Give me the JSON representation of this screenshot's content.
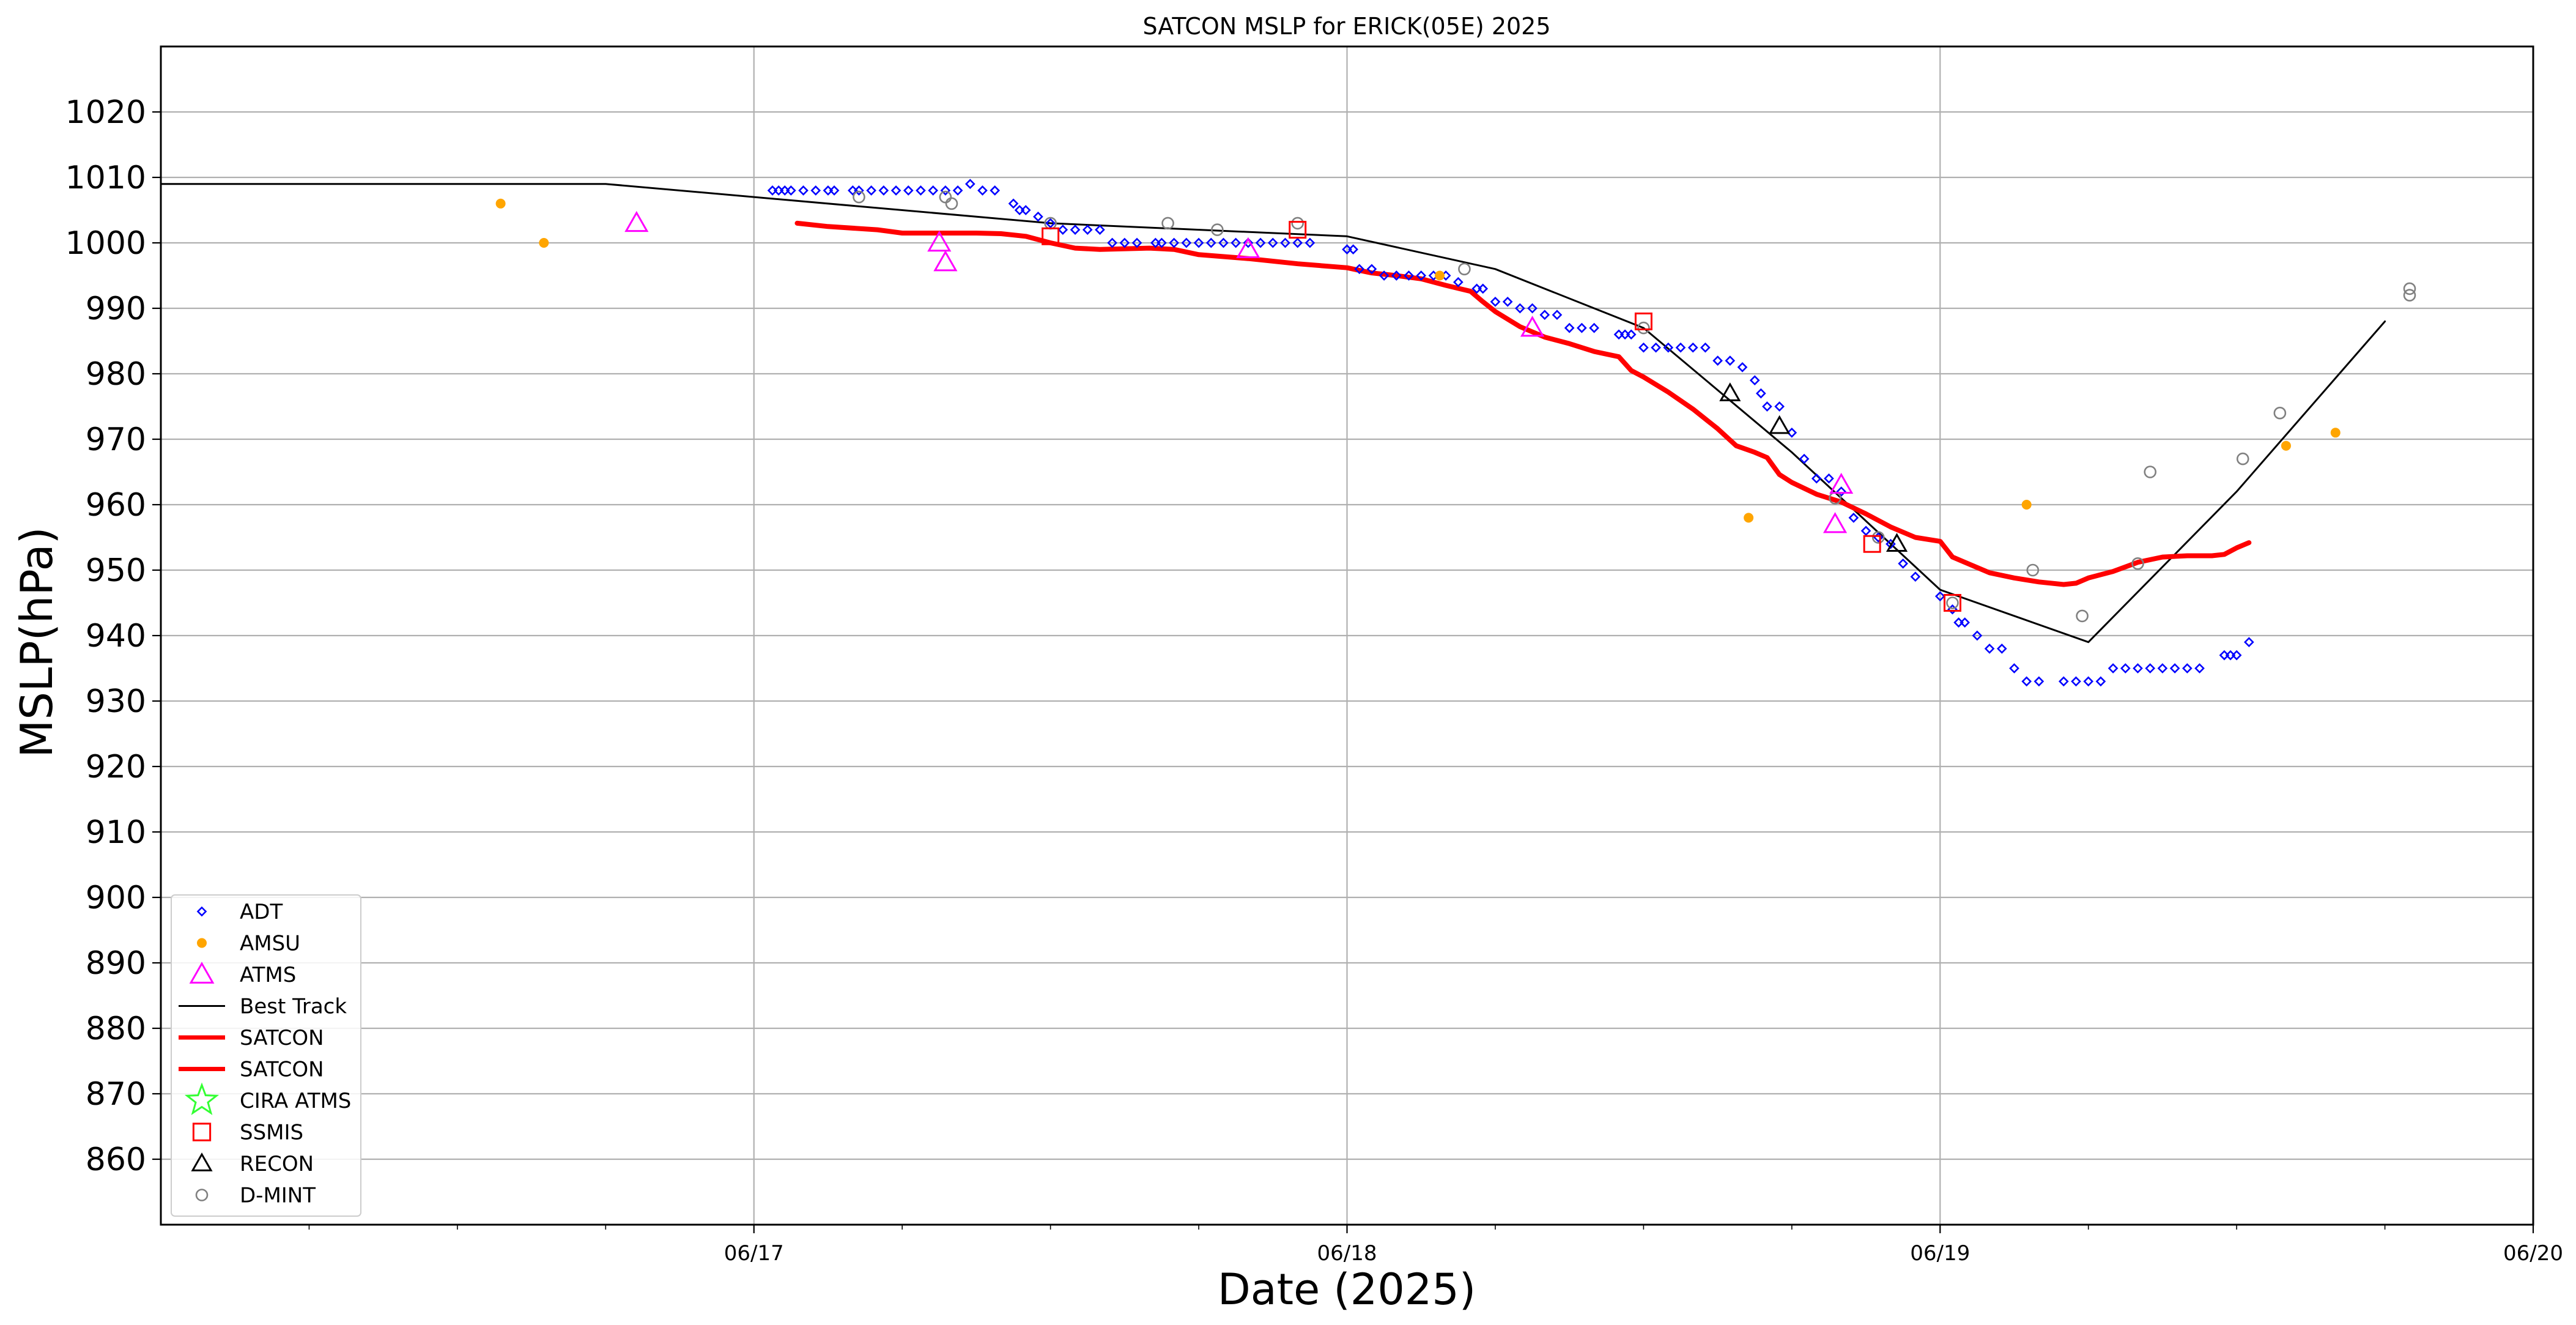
{
  "chart_data": {
    "type": "scatter",
    "title": "SATCON MSLP for ERICK(05E) 2025",
    "xlabel": "Date (2025)",
    "ylabel": "MSLP(hPa)",
    "xlim": [
      "06/16 00:00",
      "06/20 00:00"
    ],
    "ylim": [
      850,
      1030
    ],
    "yticks": [
      860,
      870,
      880,
      890,
      900,
      910,
      920,
      930,
      940,
      950,
      960,
      970,
      980,
      990,
      1000,
      1010,
      1020
    ],
    "xticks": [
      {
        "t": "06/17 00:00",
        "label": "06/17"
      },
      {
        "t": "06/18 00:00",
        "label": "06/18"
      },
      {
        "t": "06/19 00:00",
        "label": "06/19"
      },
      {
        "t": "06/20 00:00",
        "label": "06/20"
      }
    ],
    "xminor": [
      "06/16 06:00",
      "06/16 12:00",
      "06/16 18:00",
      "06/17 06:00",
      "06/17 12:00",
      "06/17 18:00",
      "06/18 06:00",
      "06/18 12:00",
      "06/18 18:00",
      "06/19 06:00",
      "06/19 12:00",
      "06/19 18:00"
    ],
    "grid": true,
    "legend_position": "lower-left",
    "series": [
      {
        "name": "ADT",
        "marker": "diamond",
        "color": "#0000ff",
        "points": [
          [
            "06/17 00:45",
            1008
          ],
          [
            "06/17 01:00",
            1008
          ],
          [
            "06/17 01:15",
            1008
          ],
          [
            "06/17 01:30",
            1008
          ],
          [
            "06/17 02:00",
            1008
          ],
          [
            "06/17 02:30",
            1008
          ],
          [
            "06/17 03:00",
            1008
          ],
          [
            "06/17 03:15",
            1008
          ],
          [
            "06/17 04:00",
            1008
          ],
          [
            "06/17 04:15",
            1008
          ],
          [
            "06/17 04:45",
            1008
          ],
          [
            "06/17 05:15",
            1008
          ],
          [
            "06/17 05:45",
            1008
          ],
          [
            "06/17 06:15",
            1008
          ],
          [
            "06/17 06:45",
            1008
          ],
          [
            "06/17 07:15",
            1008
          ],
          [
            "06/17 07:45",
            1008
          ],
          [
            "06/17 08:15",
            1008
          ],
          [
            "06/17 08:45",
            1009
          ],
          [
            "06/17 09:15",
            1008
          ],
          [
            "06/17 09:45",
            1008
          ],
          [
            "06/17 10:30",
            1006
          ],
          [
            "06/17 10:45",
            1005
          ],
          [
            "06/17 11:00",
            1005
          ],
          [
            "06/17 11:30",
            1004
          ],
          [
            "06/17 12:00",
            1003
          ],
          [
            "06/17 12:30",
            1002
          ],
          [
            "06/17 13:00",
            1002
          ],
          [
            "06/17 13:30",
            1002
          ],
          [
            "06/17 14:00",
            1002
          ],
          [
            "06/17 14:30",
            1000
          ],
          [
            "06/17 15:00",
            1000
          ],
          [
            "06/17 15:30",
            1000
          ],
          [
            "06/17 16:15",
            1000
          ],
          [
            "06/17 16:30",
            1000
          ],
          [
            "06/17 17:00",
            1000
          ],
          [
            "06/17 17:30",
            1000
          ],
          [
            "06/17 18:00",
            1000
          ],
          [
            "06/17 18:30",
            1000
          ],
          [
            "06/17 19:00",
            1000
          ],
          [
            "06/17 19:30",
            1000
          ],
          [
            "06/17 20:00",
            1000
          ],
          [
            "06/17 20:30",
            1000
          ],
          [
            "06/17 21:00",
            1000
          ],
          [
            "06/17 21:30",
            1000
          ],
          [
            "06/17 22:00",
            1000
          ],
          [
            "06/17 22:30",
            1000
          ],
          [
            "06/18 00:00",
            999
          ],
          [
            "06/18 00:15",
            999
          ],
          [
            "06/18 00:30",
            996
          ],
          [
            "06/18 01:00",
            996
          ],
          [
            "06/18 01:30",
            995
          ],
          [
            "06/18 02:00",
            995
          ],
          [
            "06/18 02:30",
            995
          ],
          [
            "06/18 03:00",
            995
          ],
          [
            "06/18 03:30",
            995
          ],
          [
            "06/18 04:00",
            995
          ],
          [
            "06/18 04:30",
            994
          ],
          [
            "06/18 05:15",
            993
          ],
          [
            "06/18 05:30",
            993
          ],
          [
            "06/18 06:00",
            991
          ],
          [
            "06/18 06:30",
            991
          ],
          [
            "06/18 07:00",
            990
          ],
          [
            "06/18 07:30",
            990
          ],
          [
            "06/18 08:00",
            989
          ],
          [
            "06/18 08:30",
            989
          ],
          [
            "06/18 09:00",
            987
          ],
          [
            "06/18 09:30",
            987
          ],
          [
            "06/18 10:00",
            987
          ],
          [
            "06/18 11:00",
            986
          ],
          [
            "06/18 11:15",
            986
          ],
          [
            "06/18 11:30",
            986
          ],
          [
            "06/18 12:00",
            984
          ],
          [
            "06/18 12:30",
            984
          ],
          [
            "06/18 13:00",
            984
          ],
          [
            "06/18 13:30",
            984
          ],
          [
            "06/18 14:00",
            984
          ],
          [
            "06/18 14:30",
            984
          ],
          [
            "06/18 15:00",
            982
          ],
          [
            "06/18 15:30",
            982
          ],
          [
            "06/18 16:00",
            981
          ],
          [
            "06/18 16:30",
            979
          ],
          [
            "06/18 16:45",
            977
          ],
          [
            "06/18 17:00",
            975
          ],
          [
            "06/18 17:30",
            975
          ],
          [
            "06/18 18:00",
            971
          ],
          [
            "06/18 18:30",
            967
          ],
          [
            "06/18 19:00",
            964
          ],
          [
            "06/18 19:30",
            964
          ],
          [
            "06/18 20:00",
            962
          ],
          [
            "06/18 20:30",
            958
          ],
          [
            "06/18 21:00",
            956
          ],
          [
            "06/18 21:30",
            955
          ],
          [
            "06/18 22:00",
            954
          ],
          [
            "06/18 22:30",
            951
          ],
          [
            "06/18 23:00",
            949
          ],
          [
            "06/19 00:00",
            946
          ],
          [
            "06/19 00:30",
            944
          ],
          [
            "06/19 00:45",
            942
          ],
          [
            "06/19 01:00",
            942
          ],
          [
            "06/19 01:30",
            940
          ],
          [
            "06/19 02:00",
            938
          ],
          [
            "06/19 02:30",
            938
          ],
          [
            "06/19 03:00",
            935
          ],
          [
            "06/19 03:30",
            933
          ],
          [
            "06/19 04:00",
            933
          ],
          [
            "06/19 05:00",
            933
          ],
          [
            "06/19 05:30",
            933
          ],
          [
            "06/19 06:00",
            933
          ],
          [
            "06/19 06:30",
            933
          ],
          [
            "06/19 07:00",
            935
          ],
          [
            "06/19 07:30",
            935
          ],
          [
            "06/19 08:00",
            935
          ],
          [
            "06/19 08:30",
            935
          ],
          [
            "06/19 09:00",
            935
          ],
          [
            "06/19 09:30",
            935
          ],
          [
            "06/19 10:00",
            935
          ],
          [
            "06/19 10:30",
            935
          ],
          [
            "06/19 11:30",
            937
          ],
          [
            "06/19 11:45",
            937
          ],
          [
            "06/19 12:00",
            937
          ],
          [
            "06/19 12:30",
            939
          ]
        ]
      },
      {
        "name": "AMSU",
        "marker": "dot",
        "color": "#ffa500",
        "points": [
          [
            "06/16 13:45",
            1006
          ],
          [
            "06/16 15:30",
            1000
          ],
          [
            "06/18 03:45",
            995
          ],
          [
            "06/18 16:15",
            958
          ],
          [
            "06/19 03:30",
            960
          ],
          [
            "06/19 14:00",
            969
          ],
          [
            "06/19 16:00",
            971
          ]
        ]
      },
      {
        "name": "ATMS",
        "marker": "triangle",
        "color": "#ff00ff",
        "points": [
          [
            "06/16 19:15",
            1003
          ],
          [
            "06/17 07:30",
            1000
          ],
          [
            "06/17 07:45",
            997
          ],
          [
            "06/17 20:00",
            999
          ],
          [
            "06/18 07:30",
            987
          ],
          [
            "06/18 19:45",
            957
          ],
          [
            "06/18 20:00",
            963
          ]
        ]
      },
      {
        "name": "Best Track",
        "marker": "line",
        "color": "#000000",
        "points": [
          [
            "06/16 00:00",
            1009
          ],
          [
            "06/16 18:00",
            1009
          ],
          [
            "06/17 12:00",
            1003
          ],
          [
            "06/18 00:00",
            1001
          ],
          [
            "06/18 06:00",
            996
          ],
          [
            "06/18 12:00",
            987
          ],
          [
            "06/18 18:00",
            968
          ],
          [
            "06/19 00:00",
            947
          ],
          [
            "06/19 06:00",
            939
          ],
          [
            "06/19 12:00",
            962
          ],
          [
            "06/19 18:00",
            988
          ]
        ]
      },
      {
        "name": "SATCON",
        "marker": "thickline",
        "color": "#ff0000",
        "points": [
          [
            "06/17 01:45",
            1003
          ],
          [
            "06/17 03:00",
            1002.5
          ],
          [
            "06/17 05:00",
            1002
          ],
          [
            "06/17 06:00",
            1001.5
          ],
          [
            "06/17 08:00",
            1001.5
          ],
          [
            "06/17 09:00",
            1001.5
          ],
          [
            "06/17 10:00",
            1001.4
          ],
          [
            "06/17 11:00",
            1001
          ],
          [
            "06/17 12:00",
            1000
          ],
          [
            "06/17 13:00",
            999.2
          ],
          [
            "06/17 14:00",
            999
          ],
          [
            "06/17 16:00",
            999.2
          ],
          [
            "06/17 17:00",
            999
          ],
          [
            "06/17 18:00",
            998.2
          ],
          [
            "06/17 20:00",
            997.6
          ],
          [
            "06/17 22:00",
            996.8
          ],
          [
            "06/18 00:00",
            996.2
          ],
          [
            "06/18 01:00",
            995.4
          ],
          [
            "06/18 02:00",
            995
          ],
          [
            "06/18 03:00",
            994.5
          ],
          [
            "06/18 04:00",
            993.5
          ],
          [
            "06/18 05:00",
            992.6
          ],
          [
            "06/18 05:30",
            991
          ],
          [
            "06/18 06:00",
            989.5
          ],
          [
            "06/18 07:00",
            987.2
          ],
          [
            "06/18 08:00",
            985.6
          ],
          [
            "06/18 09:00",
            984.6
          ],
          [
            "06/18 10:00",
            983.4
          ],
          [
            "06/18 11:00",
            982.6
          ],
          [
            "06/18 11:30",
            980.5
          ],
          [
            "06/18 12:00",
            979.5
          ],
          [
            "06/18 13:00",
            977.2
          ],
          [
            "06/18 14:00",
            974.6
          ],
          [
            "06/18 15:00",
            971.6
          ],
          [
            "06/18 15:45",
            969
          ],
          [
            "06/18 16:30",
            968
          ],
          [
            "06/18 17:00",
            967.2
          ],
          [
            "06/18 17:30",
            964.6
          ],
          [
            "06/18 18:00",
            963.4
          ],
          [
            "06/18 19:00",
            961.6
          ],
          [
            "06/18 20:00",
            960.4
          ],
          [
            "06/18 21:00",
            958.6
          ],
          [
            "06/18 22:00",
            956.6
          ],
          [
            "06/18 23:00",
            955
          ],
          [
            "06/19 00:00",
            954.4
          ],
          [
            "06/19 00:30",
            952
          ],
          [
            "06/19 01:00",
            951.2
          ],
          [
            "06/19 02:00",
            949.6
          ],
          [
            "06/19 03:00",
            948.8
          ],
          [
            "06/19 04:00",
            948.2
          ],
          [
            "06/19 05:00",
            947.8
          ],
          [
            "06/19 05:30",
            948
          ],
          [
            "06/19 06:00",
            948.8
          ],
          [
            "06/19 07:00",
            949.8
          ],
          [
            "06/19 08:00",
            951.2
          ],
          [
            "06/19 09:00",
            952
          ],
          [
            "06/19 10:00",
            952.2
          ],
          [
            "06/19 11:00",
            952.2
          ],
          [
            "06/19 11:30",
            952.4
          ],
          [
            "06/19 12:00",
            953.4
          ],
          [
            "06/19 12:30",
            954.2
          ]
        ]
      },
      {
        "name": "SATCON",
        "marker": "thickline",
        "color": "#ff0000",
        "points": []
      },
      {
        "name": "CIRA ATMS",
        "marker": "star",
        "color": "#33ff33",
        "points": []
      },
      {
        "name": "SSMIS",
        "marker": "square",
        "color": "#ff0000",
        "points": [
          [
            "06/17 12:00",
            1001
          ],
          [
            "06/17 22:00",
            1002
          ],
          [
            "06/18 12:00",
            988
          ],
          [
            "06/18 21:15",
            954
          ],
          [
            "06/19 00:30",
            945
          ]
        ]
      },
      {
        "name": "RECON",
        "marker": "opentriangle",
        "color": "#000000",
        "points": [
          [
            "06/18 15:30",
            977
          ],
          [
            "06/18 17:30",
            972
          ],
          [
            "06/18 22:15",
            954
          ]
        ]
      },
      {
        "name": "D-MINT",
        "marker": "circle",
        "color": "#808080",
        "points": [
          [
            "06/17 04:15",
            1007
          ],
          [
            "06/17 07:45",
            1007
          ],
          [
            "06/17 08:00",
            1006
          ],
          [
            "06/17 12:00",
            1003
          ],
          [
            "06/17 16:45",
            1003
          ],
          [
            "06/17 18:45",
            1002
          ],
          [
            "06/17 22:00",
            1003
          ],
          [
            "06/18 04:45",
            996
          ],
          [
            "06/18 12:00",
            987
          ],
          [
            "06/18 19:45",
            961
          ],
          [
            "06/18 21:30",
            955
          ],
          [
            "06/19 00:30",
            945
          ],
          [
            "06/19 03:45",
            950
          ],
          [
            "06/19 05:45",
            943
          ],
          [
            "06/19 08:00",
            951
          ],
          [
            "06/19 08:30",
            965
          ],
          [
            "06/19 12:15",
            967
          ],
          [
            "06/19 13:45",
            974
          ],
          [
            "06/19 19:00",
            993
          ],
          [
            "06/19 19:00",
            992
          ]
        ]
      }
    ]
  }
}
